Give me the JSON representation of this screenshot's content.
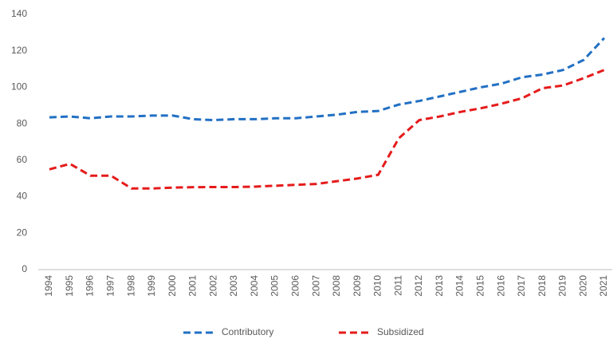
{
  "chart_data": {
    "type": "line",
    "categories": [
      "1994",
      "1995",
      "1996",
      "1997",
      "1998",
      "1999",
      "2000",
      "2001",
      "2002",
      "2003",
      "2004",
      "2005",
      "2006",
      "2007",
      "2008",
      "2009",
      "2010",
      "2011",
      "2012",
      "2013",
      "2014",
      "2015",
      "2016",
      "2017",
      "2018",
      "2019",
      "2020",
      "2021"
    ],
    "series": [
      {
        "name": "Contributory",
        "color": "#2270c4",
        "values": [
          83.5,
          84,
          83,
          84,
          84,
          84.5,
          84.5,
          82.5,
          82,
          82.5,
          82.5,
          83,
          83,
          84,
          85,
          86.5,
          87,
          90.5,
          92.5,
          95,
          97.5,
          100,
          102,
          105.5,
          107,
          109.5,
          115,
          127
        ]
      },
      {
        "name": "Subsidized",
        "color": "#e51b1b",
        "values": [
          55,
          58,
          51.5,
          51.5,
          44.5,
          44.5,
          45,
          45.2,
          45.3,
          45.3,
          45.5,
          46,
          46.5,
          47,
          48.5,
          50,
          52,
          72,
          82,
          84,
          86.5,
          88.5,
          91,
          94,
          99.5,
          101,
          105,
          109.5
        ]
      }
    ],
    "ylim": [
      0,
      140
    ],
    "yticks": [
      0,
      20,
      40,
      60,
      80,
      100,
      120,
      140
    ],
    "grid": false,
    "legend": "bottom"
  }
}
